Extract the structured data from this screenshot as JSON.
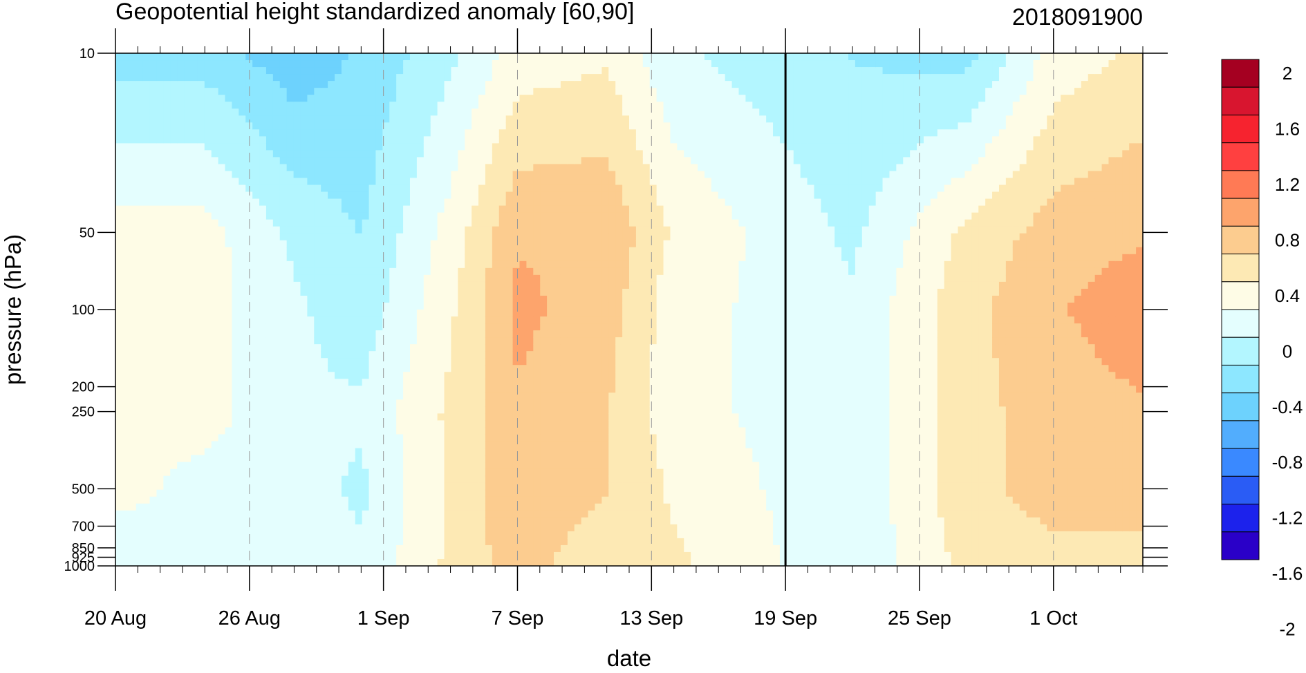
{
  "chart_data": {
    "type": "heatmap",
    "title": "Geopotential height standardized anomaly [60,90]",
    "subtitle": "2018091900",
    "xlabel": "date",
    "ylabel": "pressure (hPa)",
    "x_ticks": [
      "20 Aug",
      "26 Aug",
      "1 Sep",
      "7 Sep",
      "13 Sep",
      "19 Sep",
      "25 Sep",
      "1 Oct"
    ],
    "x_dates": [
      "2018-08-20",
      "2018-08-26",
      "2018-09-01",
      "2018-09-07",
      "2018-09-13",
      "2018-09-19",
      "2018-09-25",
      "2018-10-01"
    ],
    "xlim": [
      "2018-08-20",
      "2018-10-05"
    ],
    "y_ticks": [
      10,
      50,
      100,
      200,
      250,
      500,
      700,
      850,
      925,
      1000
    ],
    "ylim": [
      1000,
      10
    ],
    "y_scale": "log",
    "analysis_date_line": "2018-09-19",
    "colorbar": {
      "levels": [
        -2,
        -1.6,
        -1.2,
        -0.8,
        -0.4,
        0,
        0.4,
        0.8,
        1.2,
        1.6,
        2
      ],
      "labels": [
        "2",
        "1.6",
        "1.2",
        "0.8",
        "0.4",
        "0",
        "-0.4",
        "-0.8",
        "-1.2",
        "-1.6",
        "-2"
      ],
      "colors": [
        "#a50021",
        "#d8152f",
        "#f6232f",
        "#ff4040",
        "#ff7a55",
        "#fda46c",
        "#fccc8f",
        "#fde9b4",
        "#fefce6",
        "#e4fefe",
        "#b3f6ff",
        "#8de7ff",
        "#6dd2fd",
        "#52adfd",
        "#3a89ff",
        "#2a5cf5",
        "#1c22ec",
        "#2a00c8"
      ]
    },
    "series": [
      {
        "values_by_pressure": [
          {
            "pressure": 10,
            "values": [
              -0.6,
              -0.6,
              -0.9,
              -0.7,
              -0.3,
              0.1,
              0.2,
              -0.2,
              -0.5,
              -0.6,
              0.1,
              0.3
            ]
          },
          {
            "pressure": 50,
            "values": [
              0.1,
              0.1,
              -0.3,
              -0.5,
              0.1,
              0.7,
              0.7,
              0.2,
              -0.3,
              0.3,
              0.6,
              0.7
            ]
          },
          {
            "pressure": 100,
            "values": [
              0.1,
              0.1,
              -0.2,
              -0.4,
              0.2,
              0.8,
              0.6,
              0.1,
              -0.2,
              0.4,
              0.7,
              0.9
            ]
          },
          {
            "pressure": 250,
            "values": [
              0.1,
              0.1,
              -0.2,
              -0.2,
              0.3,
              0.7,
              0.5,
              0.1,
              -0.2,
              0.4,
              0.6,
              0.7
            ]
          },
          {
            "pressure": 500,
            "values": [
              0.1,
              -0.1,
              -0.1,
              -0.3,
              0.3,
              0.7,
              0.5,
              0.2,
              -0.2,
              0.4,
              0.6,
              0.6
            ]
          },
          {
            "pressure": 1000,
            "values": [
              -0.2,
              -0.1,
              -0.1,
              -0.2,
              0.3,
              0.6,
              0.3,
              0.3,
              -0.2,
              0.3,
              0.4,
              0.4
            ]
          }
        ],
        "x_dates": [
          "2018-08-20",
          "2018-08-24",
          "2018-08-28",
          "2018-08-31",
          "2018-09-04",
          "2018-09-07",
          "2018-09-11",
          "2018-09-14",
          "2018-09-22",
          "2018-09-27",
          "2018-10-01",
          "2018-10-05"
        ]
      }
    ]
  }
}
